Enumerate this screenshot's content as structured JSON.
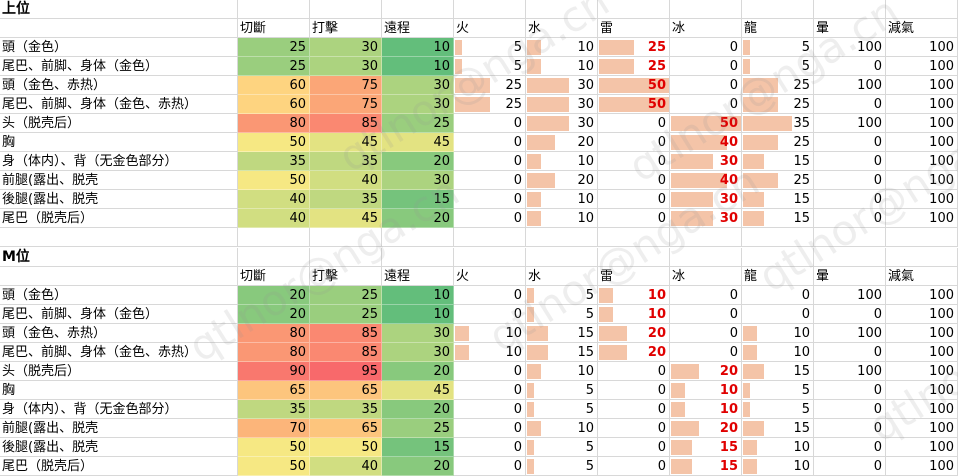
{
  "watermark": "qtlnor@nga.cn",
  "columns": [
    "切斷",
    "打擊",
    "遠程",
    "火",
    "水",
    "雷",
    "冰",
    "龍",
    "暈",
    "減氣"
  ],
  "bar_max": 50,
  "colors": {
    "bar": "#f4c4a8",
    "highlight_text": "#e00000",
    "grid": "#d8d8d8"
  },
  "sections": [
    {
      "title": "上位",
      "rows": [
        {
          "part": "頭（金色）",
          "values": [
            25,
            30,
            10,
            5,
            10,
            25,
            0,
            5,
            100,
            100
          ],
          "highlight": [
            5
          ]
        },
        {
          "part": "尾巴、前脚、身体（金色）",
          "values": [
            25,
            30,
            10,
            5,
            10,
            25,
            0,
            5,
            0,
            100
          ],
          "highlight": [
            5
          ]
        },
        {
          "part": "頭（金色、赤热）",
          "values": [
            60,
            75,
            30,
            25,
            30,
            50,
            0,
            25,
            100,
            100
          ],
          "highlight": [
            5
          ]
        },
        {
          "part": "尾巴、前脚、身体（金色、赤热）",
          "values": [
            60,
            75,
            30,
            25,
            30,
            50,
            0,
            25,
            0,
            100
          ],
          "highlight": [
            5
          ]
        },
        {
          "part": "头（脱壳后）",
          "values": [
            80,
            85,
            25,
            0,
            30,
            0,
            50,
            35,
            100,
            100
          ],
          "highlight": [
            6
          ]
        },
        {
          "part": "胸",
          "values": [
            50,
            45,
            45,
            0,
            20,
            0,
            40,
            25,
            0,
            100
          ],
          "highlight": [
            6
          ]
        },
        {
          "part": "身（体内）、背（无金色部分）",
          "values": [
            35,
            35,
            20,
            0,
            10,
            0,
            30,
            15,
            0,
            100
          ],
          "highlight": [
            6
          ]
        },
        {
          "part": "前腿(露出、脱壳",
          "values": [
            50,
            40,
            30,
            0,
            20,
            0,
            40,
            25,
            0,
            100
          ],
          "highlight": [
            6
          ]
        },
        {
          "part": "後腿(露出、脱壳",
          "values": [
            40,
            35,
            15,
            0,
            10,
            0,
            30,
            15,
            0,
            100
          ],
          "highlight": [
            6
          ]
        },
        {
          "part": "尾巴（脱壳后）",
          "values": [
            40,
            45,
            20,
            0,
            10,
            0,
            30,
            15,
            0,
            100
          ],
          "highlight": [
            6
          ]
        }
      ]
    },
    {
      "title": "M位",
      "rows": [
        {
          "part": "頭（金色）",
          "values": [
            20,
            25,
            10,
            0,
            5,
            10,
            0,
            0,
            100,
            100
          ],
          "highlight": [
            5
          ]
        },
        {
          "part": "尾巴、前脚、身体（金色）",
          "values": [
            20,
            25,
            10,
            0,
            5,
            10,
            0,
            0,
            0,
            100
          ],
          "highlight": [
            5
          ]
        },
        {
          "part": "頭（金色、赤热）",
          "values": [
            80,
            85,
            30,
            10,
            15,
            20,
            0,
            10,
            100,
            100
          ],
          "highlight": [
            5
          ]
        },
        {
          "part": "尾巴、前脚、身体（金色、赤热）",
          "values": [
            80,
            85,
            30,
            10,
            15,
            20,
            0,
            10,
            0,
            100
          ],
          "highlight": [
            5
          ]
        },
        {
          "part": "头（脱壳后）",
          "values": [
            90,
            95,
            20,
            0,
            10,
            0,
            20,
            15,
            100,
            100
          ],
          "highlight": [
            6
          ]
        },
        {
          "part": "胸",
          "values": [
            65,
            65,
            45,
            0,
            5,
            0,
            10,
            5,
            0,
            100
          ],
          "highlight": [
            6
          ]
        },
        {
          "part": "身（体内）、背（无金色部分）",
          "values": [
            35,
            35,
            20,
            0,
            5,
            0,
            10,
            5,
            0,
            100
          ],
          "highlight": [
            6
          ]
        },
        {
          "part": "前腿(露出、脱壳",
          "values": [
            70,
            65,
            25,
            0,
            10,
            0,
            20,
            15,
            0,
            100
          ],
          "highlight": [
            6
          ]
        },
        {
          "part": "後腿(露出、脱壳",
          "values": [
            50,
            50,
            15,
            0,
            5,
            0,
            15,
            10,
            0,
            100
          ],
          "highlight": [
            6
          ]
        },
        {
          "part": "尾巴（脱壳后）",
          "values": [
            50,
            40,
            20,
            0,
            5,
            0,
            15,
            10,
            0,
            100
          ],
          "highlight": [
            6
          ]
        }
      ]
    }
  ]
}
